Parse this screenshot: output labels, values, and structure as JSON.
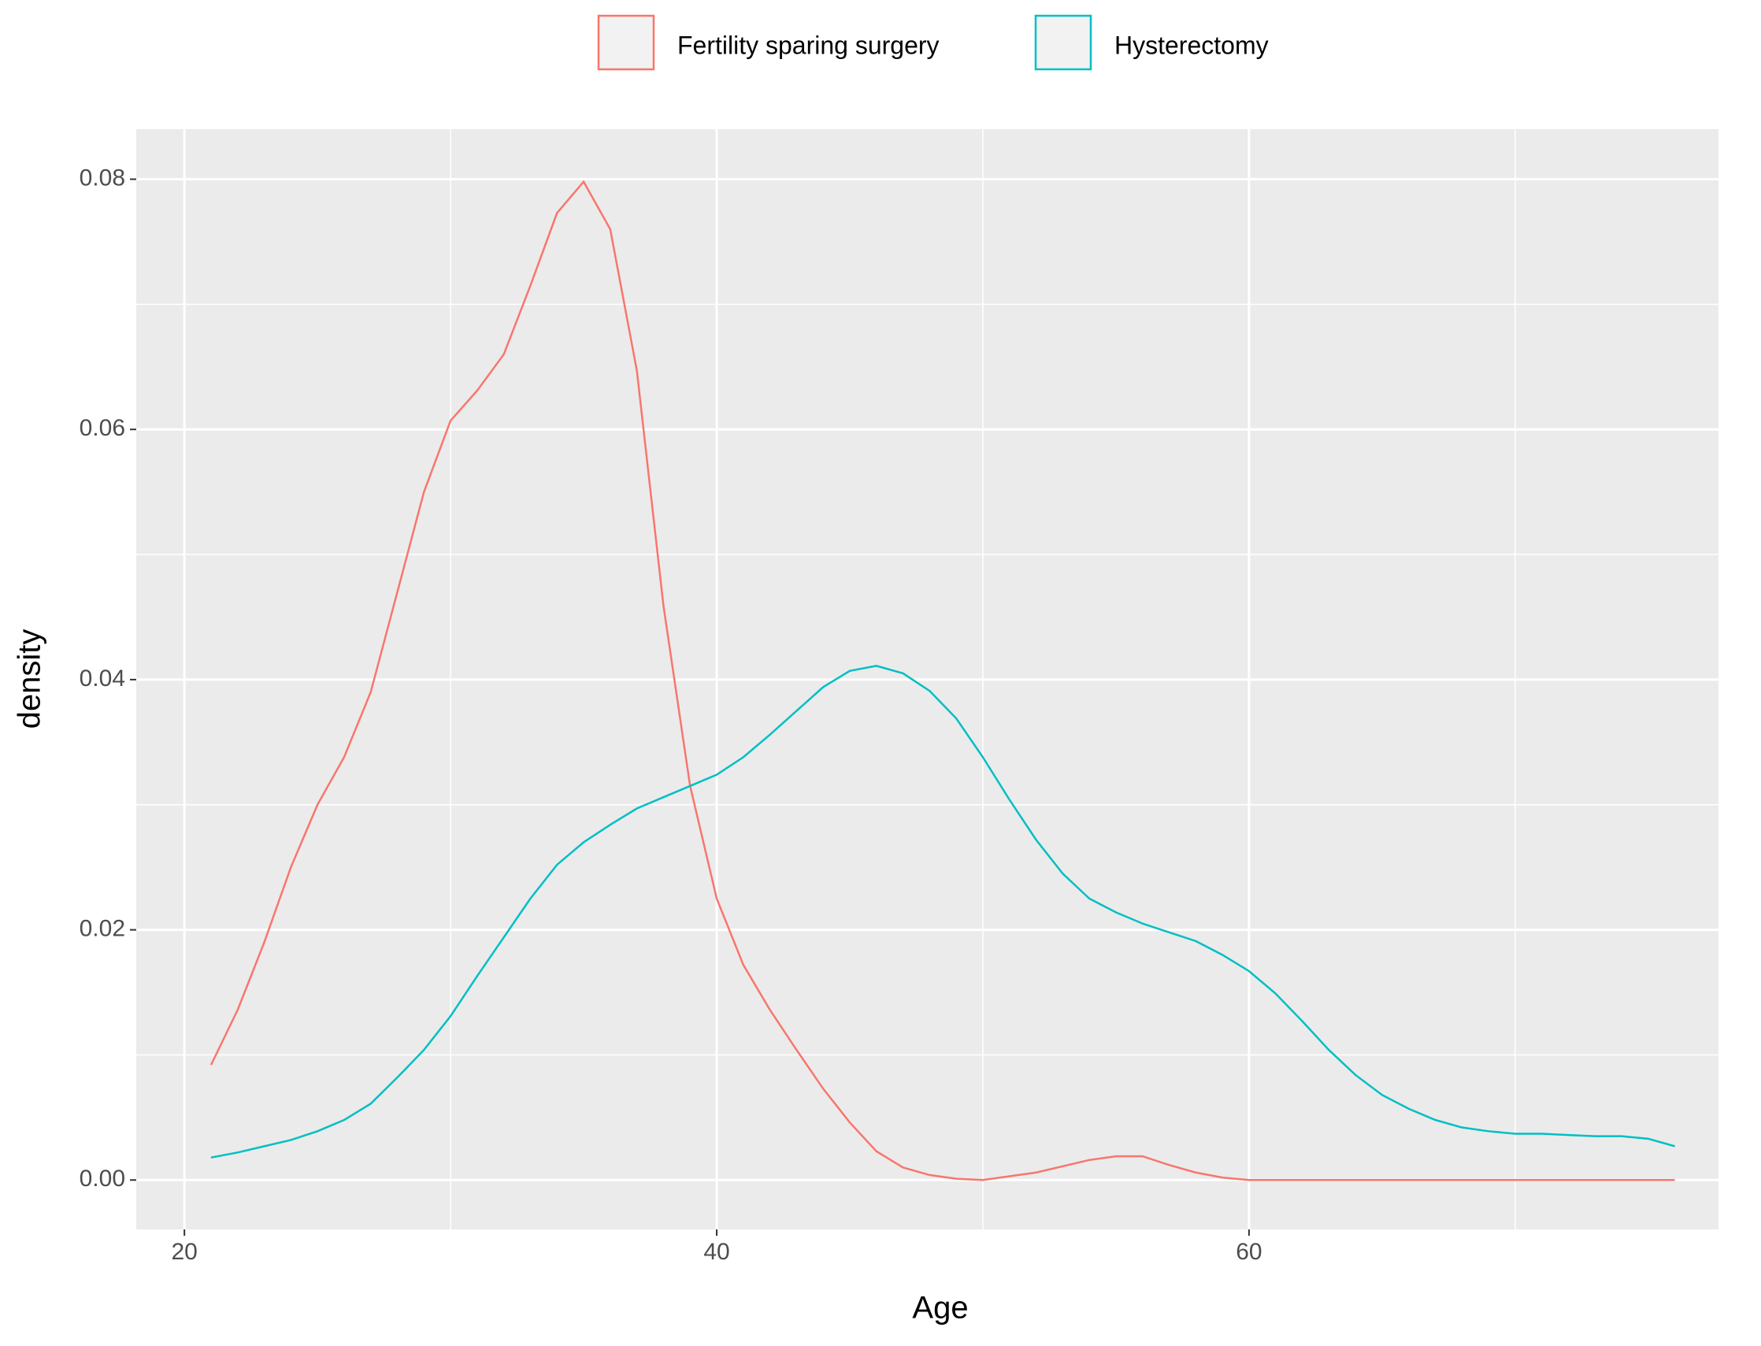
{
  "chart_data": {
    "type": "line",
    "x_label": "Age",
    "y_label": "density",
    "x": [
      21,
      22,
      23,
      24,
      25,
      26,
      27,
      28,
      29,
      30,
      31,
      32,
      33,
      34,
      35,
      36,
      37,
      38,
      39,
      40,
      41,
      42,
      43,
      44,
      45,
      46,
      47,
      48,
      49,
      50,
      51,
      52,
      53,
      54,
      55,
      56,
      57,
      58,
      59,
      60,
      61,
      62,
      63,
      64,
      65,
      66,
      67,
      68,
      69,
      70,
      71,
      72,
      73,
      74,
      75,
      76
    ],
    "series": [
      {
        "name": "Fertility sparing surgery",
        "color": "#f8766d",
        "values": [
          0.0092,
          0.0136,
          0.019,
          0.025,
          0.03,
          0.0338,
          0.039,
          0.047,
          0.055,
          0.0607,
          0.0631,
          0.066,
          0.0715,
          0.0773,
          0.0798,
          0.076,
          0.0647,
          0.0459,
          0.0315,
          0.0225,
          0.0172,
          0.0136,
          0.0104,
          0.0073,
          0.0046,
          0.0023,
          0.001,
          0.0004,
          0.0001,
          0,
          0.0003,
          0.0006,
          0.0011,
          0.0016,
          0.0019,
          0.0019,
          0.0012,
          0.0006,
          0.0002,
          0,
          0,
          0,
          0,
          0,
          0,
          0,
          0,
          0,
          0,
          0,
          0,
          0,
          0,
          0,
          0,
          0
        ]
      },
      {
        "name": "Hysterectomy",
        "color": "#00bfc4",
        "values": [
          0.0018,
          0.0022,
          0.0027,
          0.0032,
          0.0039,
          0.0048,
          0.0061,
          0.0082,
          0.0104,
          0.0131,
          0.0163,
          0.0194,
          0.0225,
          0.0252,
          0.027,
          0.0284,
          0.0297,
          0.0306,
          0.0315,
          0.0324,
          0.0338,
          0.0356,
          0.0375,
          0.0394,
          0.0407,
          0.0411,
          0.0405,
          0.0391,
          0.0369,
          0.0338,
          0.0304,
          0.0272,
          0.0245,
          0.0225,
          0.0214,
          0.0205,
          0.0198,
          0.0191,
          0.018,
          0.0167,
          0.0149,
          0.0127,
          0.0104,
          0.0084,
          0.0068,
          0.0057,
          0.0048,
          0.0042,
          0.0039,
          0.0037,
          0.0037,
          0.0036,
          0.0035,
          0.0035,
          0.0033,
          0.0027
        ]
      }
    ],
    "xlim": [
      18.19,
      77.64
    ],
    "ylim": [
      -0.00395,
      0.084
    ],
    "xticks": [
      20,
      40,
      60
    ],
    "yticks": [
      {
        "value": 0,
        "label": "0.00"
      },
      0.02,
      0.04,
      0.06,
      0.08
    ],
    "grid": true,
    "legend": "top"
  }
}
